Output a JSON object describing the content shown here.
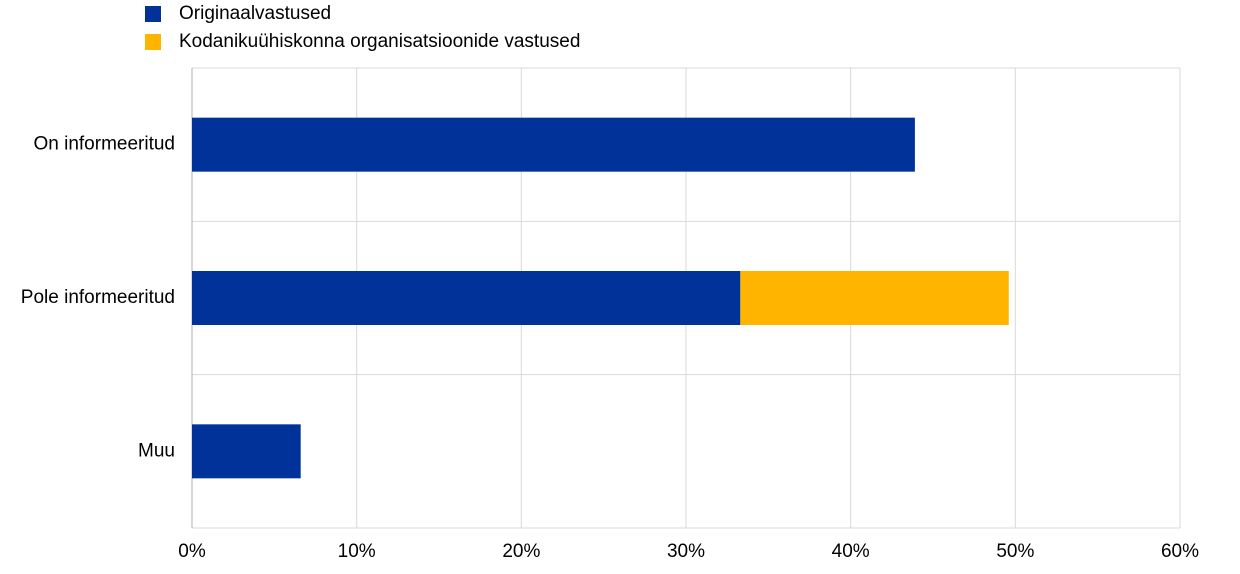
{
  "chart_data": {
    "type": "stacked-bar",
    "orientation": "horizontal",
    "categories": [
      "On informeeritud",
      "Pole informeeritud",
      "Muu"
    ],
    "series": [
      {
        "name": "Originaalvastused",
        "color": "#003299",
        "values": [
          43.9,
          33.3,
          6.6
        ]
      },
      {
        "name": "Kodanikuühiskonna organisatsioonide vastused",
        "color": "#ffb400",
        "values": [
          0,
          16.3,
          0
        ]
      }
    ],
    "xlim": [
      0,
      60
    ],
    "xticks": [
      {
        "value": 0,
        "label": "0%"
      },
      {
        "value": 10,
        "label": "10%"
      },
      {
        "value": 20,
        "label": "20%"
      },
      {
        "value": 30,
        "label": "30%"
      },
      {
        "value": 40,
        "label": "40%"
      },
      {
        "value": 50,
        "label": "50%"
      },
      {
        "value": 60,
        "label": "60%"
      }
    ],
    "grid": true,
    "legend": "top-left"
  }
}
